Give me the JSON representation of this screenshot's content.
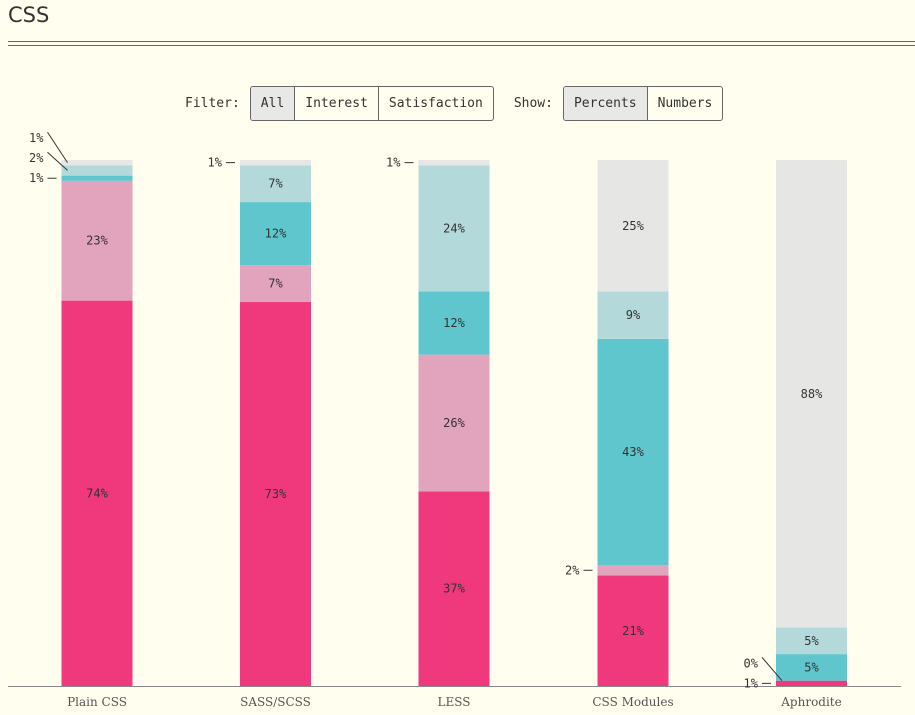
{
  "page": {
    "title": "CSS"
  },
  "controls": {
    "filter_label": "Filter:",
    "filter_options": [
      "All",
      "Interest",
      "Satisfaction"
    ],
    "filter_selected": "All",
    "show_label": "Show:",
    "show_options": [
      "Percents",
      "Numbers"
    ],
    "show_selected": "Percents"
  },
  "colors": {
    "bg": "#fffeef",
    "used_would_use_again": "#f0387c",
    "used_would_not_use_again": "#e1a4bc",
    "heard_would_like": "#5fc6ce",
    "heard_not_interested": "#b4d9db",
    "never_heard": "#e6e6e4"
  },
  "chart_data": {
    "type": "bar",
    "stacked": true,
    "normalized_to": 100,
    "categories": [
      "Plain CSS",
      "SASS/SCSS",
      "LESS",
      "CSS Modules",
      "Aphrodite"
    ],
    "series": [
      {
        "color_key": "used_would_use_again",
        "values": [
          74,
          73,
          37,
          21,
          1
        ]
      },
      {
        "color_key": "used_would_not_use_again",
        "values": [
          23,
          7,
          26,
          2,
          0
        ]
      },
      {
        "color_key": "heard_would_like",
        "values": [
          1,
          12,
          12,
          43,
          5
        ]
      },
      {
        "color_key": "heard_not_interested",
        "values": [
          2,
          7,
          24,
          9,
          5
        ]
      },
      {
        "color_key": "never_heard",
        "values": [
          1,
          1,
          1,
          25,
          88
        ]
      }
    ],
    "ylim": [
      0,
      100
    ],
    "grid": false,
    "legend": "none"
  }
}
